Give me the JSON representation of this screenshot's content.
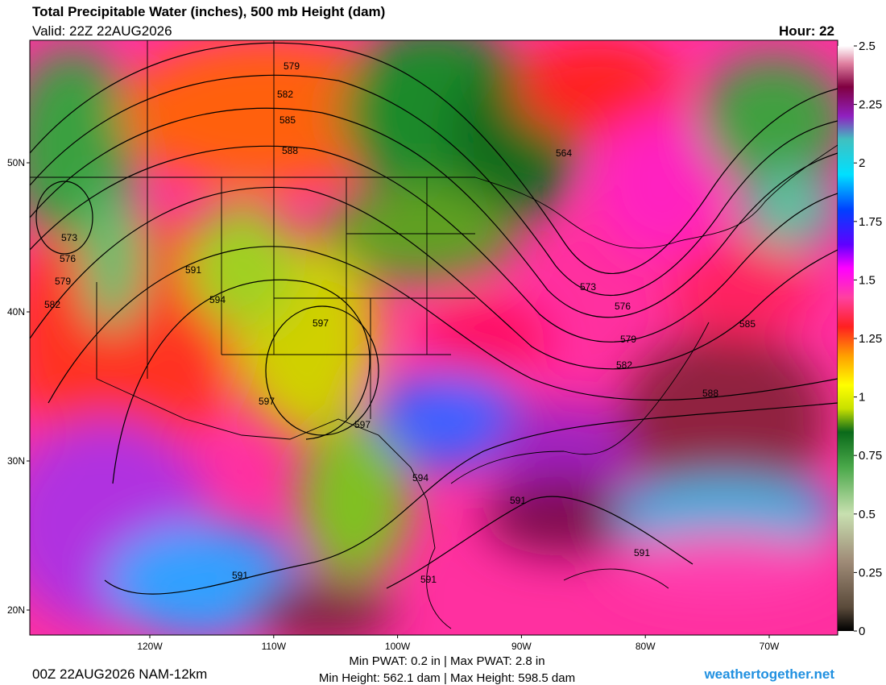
{
  "header": {
    "title": "Total Precipitable Water (inches), 500 mb Height (dam)",
    "valid": "Valid: 22Z 22AUG2026",
    "hour": "Hour: 22"
  },
  "colorbar": {
    "ticks": [
      0,
      0.25,
      0.5,
      0.75,
      1,
      1.25,
      1.5,
      1.75,
      2,
      2.25,
      2.5
    ],
    "lim": [
      0,
      2.5
    ]
  },
  "map": {
    "lat_ticks": [
      {
        "value": 50,
        "label": "50N"
      },
      {
        "value": 40,
        "label": "40N"
      },
      {
        "value": 30,
        "label": "30N"
      },
      {
        "value": 20,
        "label": "20N"
      }
    ],
    "lon_ticks": [
      {
        "value": -120,
        "label": "120W"
      },
      {
        "value": -110,
        "label": "110W"
      },
      {
        "value": -100,
        "label": "100W"
      },
      {
        "value": -90,
        "label": "90W"
      },
      {
        "value": -80,
        "label": "80W"
      },
      {
        "value": -70,
        "label": "70W"
      }
    ],
    "contour_labels": [
      579,
      582,
      585,
      588,
      564,
      573,
      576,
      579,
      582,
      591,
      594,
      597,
      597,
      597,
      573,
      576,
      579,
      582,
      585,
      588,
      594,
      591,
      591,
      591,
      591
    ]
  },
  "footer": {
    "run": "00Z 22AUG2026 NAM-12km",
    "pwat": "Min PWAT:   0.2 in | Max PWAT:   2.8 in",
    "height": "Min Height: 562.1 dam | Max Height: 598.5 dam",
    "site": "weathertogether.net"
  }
}
